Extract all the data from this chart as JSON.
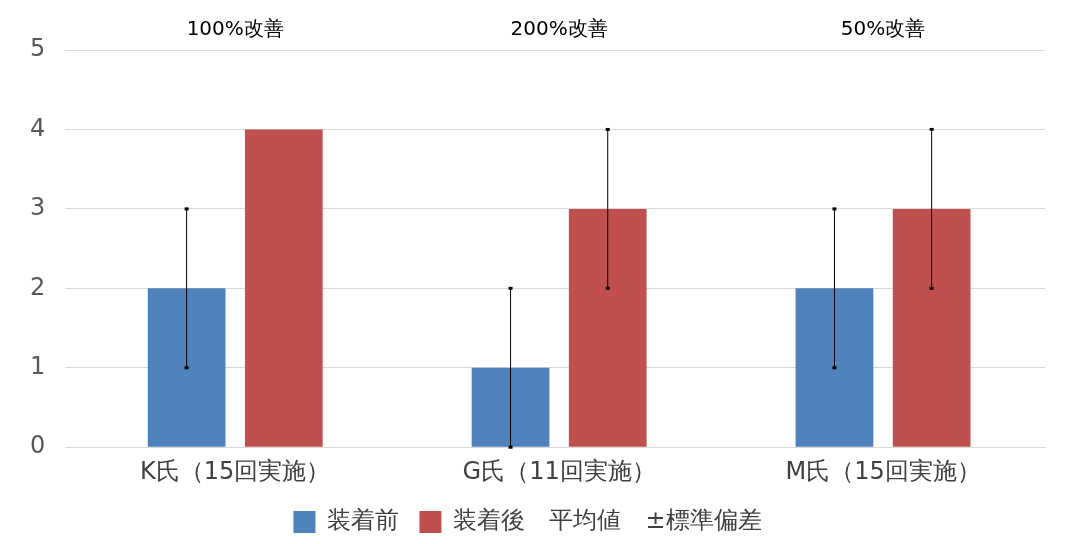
{
  "chart_data": {
    "type": "bar",
    "categories": [
      "K氏（15回実施）",
      "G氏（11回実施）",
      "M氏（15回実施）"
    ],
    "series": [
      {
        "name": "装着前",
        "color": "#4f81bd",
        "values": [
          2,
          1,
          2
        ],
        "errors": [
          1,
          1,
          1
        ]
      },
      {
        "name": "装着後　平均値　±標準偏差",
        "color": "#c0504d",
        "values": [
          4,
          3,
          3
        ],
        "errors": [
          null,
          1,
          1
        ]
      }
    ],
    "ylim": [
      0,
      5
    ],
    "yticks": [
      0,
      1,
      2,
      3,
      4,
      5
    ],
    "grid": "y",
    "legend": "bottom",
    "annotations": [
      "100%改善",
      "200%改善",
      "50%改善"
    ]
  }
}
